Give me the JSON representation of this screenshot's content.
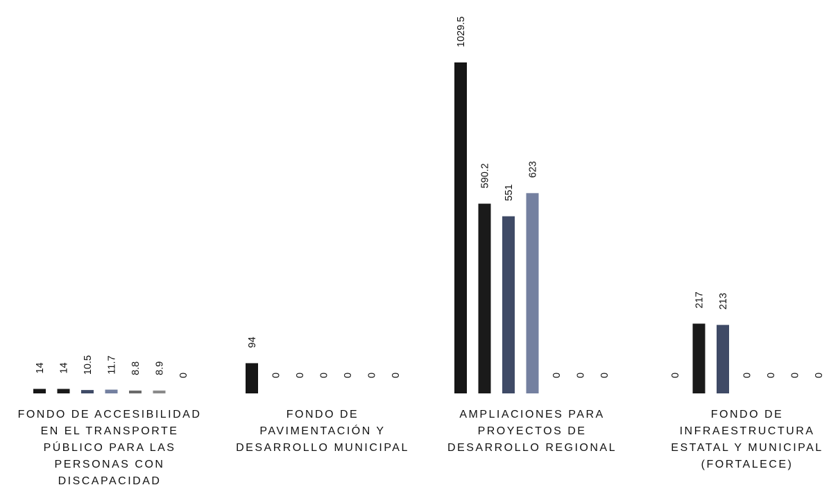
{
  "chart_data": {
    "type": "bar",
    "title": "",
    "xlabel": "",
    "ylabel": "",
    "ylim": [
      0,
      1100
    ],
    "grid": false,
    "legend": "none",
    "categories": [
      "FONDO DE ACCESIBILIDAD EN EL TRANSPORTE PÚBLICO PARA LAS PERSONAS CON DISCAPACIDAD",
      "FONDO DE PAVIMENTACIÓN Y DESARROLLO MUNICIPAL",
      "AMPLIACIONES PARA PROYECTOS DE DESARROLLO REGIONAL",
      "FONDO DE INFRAESTRUCTURA ESTATAL Y MUNICIPAL (FORTALECE)"
    ],
    "category_label_lines": [
      [
        "FONDO DE ACCESIBILIDAD",
        "EN EL TRANSPORTE",
        "PÚBLICO PARA LAS",
        "PERSONAS CON",
        "DISCAPACIDAD"
      ],
      [
        "FONDO DE",
        "PAVIMENTACIÓN Y",
        "DESARROLLO MUNICIPAL"
      ],
      [
        "AMPLIACIONES PARA",
        "PROYECTOS DE",
        "DESARROLLO REGIONAL"
      ],
      [
        "FONDO DE",
        "INFRAESTRUCTURA",
        "ESTATAL Y MUNICIPAL",
        "(FORTALECE)"
      ]
    ],
    "series": [
      {
        "color": "#161616",
        "values": [
          14,
          94,
          1029.5,
          0
        ]
      },
      {
        "color": "#1a1a1a",
        "values": [
          14,
          0,
          590.2,
          217
        ]
      },
      {
        "color": "#3f4a66",
        "values": [
          10.5,
          0,
          551,
          213
        ]
      },
      {
        "color": "#7480a0",
        "values": [
          11.7,
          0,
          623,
          0
        ]
      },
      {
        "color": "#6a6a6a",
        "values": [
          8.8,
          0,
          0,
          0
        ]
      },
      {
        "color": "#8a8a8a",
        "values": [
          8.9,
          0,
          0,
          0
        ]
      },
      {
        "color": "#aaaaaa",
        "values": [
          0,
          0,
          0,
          0
        ]
      }
    ],
    "data_labels": [
      [
        "14",
        "14",
        "10.5",
        "11.7",
        "8.8",
        "8.9",
        "0"
      ],
      [
        "94",
        "0",
        "0",
        "0",
        "0",
        "0",
        "0"
      ],
      [
        "1029.5",
        "590.2",
        "551",
        "623",
        "0",
        "0",
        "0"
      ],
      [
        "0",
        "217",
        "213",
        "0",
        "0",
        "0",
        "0"
      ]
    ]
  }
}
